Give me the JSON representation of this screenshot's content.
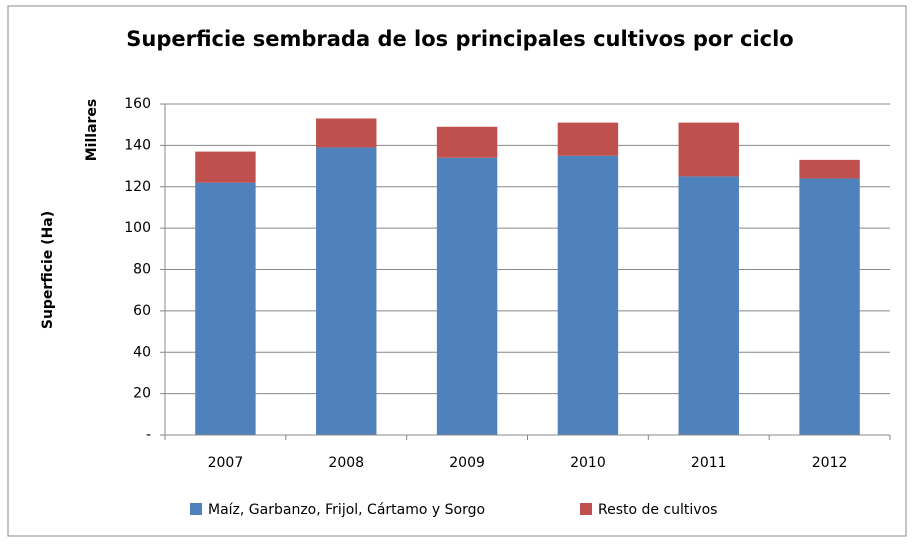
{
  "chart_data": {
    "type": "stacked-bar",
    "title": "Superficie sembrada de los principales cultivos por ciclo",
    "y_label": "Superficie (Ha)",
    "y_unit_label": "Millares",
    "categories": [
      "2007",
      "2008",
      "2009",
      "2010",
      "2011",
      "2012"
    ],
    "series": [
      {
        "name": "Maíz, Garbanzo, Frijol, Cártamo y Sorgo",
        "color": "#4f81bd",
        "values": [
          122,
          139,
          134,
          135,
          125,
          124
        ]
      },
      {
        "name": "Resto de cultivos",
        "color": "#c0504d",
        "values": [
          15,
          14,
          15,
          16,
          26,
          9
        ]
      }
    ],
    "ylim": [
      0,
      160
    ],
    "yticks": [
      {
        "value": 0,
        "label": "-"
      },
      20,
      40,
      60,
      80,
      100,
      120,
      140,
      160
    ],
    "grid": true,
    "legend": "bottom"
  }
}
